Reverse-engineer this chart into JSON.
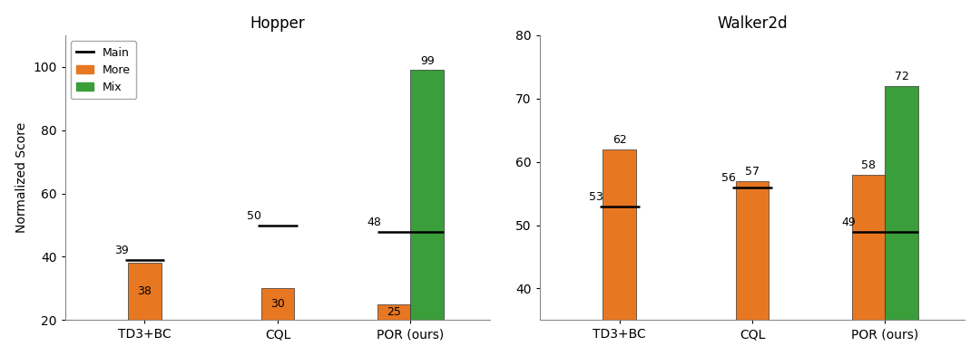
{
  "hopper": {
    "title": "Hopper",
    "categories": [
      "TD3+BC",
      "CQL",
      "POR (ours)"
    ],
    "main": [
      39,
      50,
      48
    ],
    "more": [
      38,
      30,
      25
    ],
    "mix": [
      null,
      null,
      99
    ],
    "ylim": [
      20,
      110
    ],
    "yticks": [
      20,
      40,
      60,
      80,
      100
    ]
  },
  "walker2d": {
    "title": "Walker2d",
    "categories": [
      "TD3+BC",
      "CQL",
      "POR (ours)"
    ],
    "main": [
      53,
      56,
      49
    ],
    "more": [
      62,
      57,
      58
    ],
    "mix": [
      null,
      null,
      72
    ],
    "ylim": [
      35,
      80
    ],
    "yticks": [
      40,
      50,
      60,
      70,
      80
    ]
  },
  "ylabel": "Normalized Score",
  "color_more": "#E87722",
  "color_mix": "#3A9E3A",
  "color_main": "#000000",
  "bar_width": 0.25,
  "legend_labels": [
    "Main",
    "More",
    "Mix"
  ]
}
